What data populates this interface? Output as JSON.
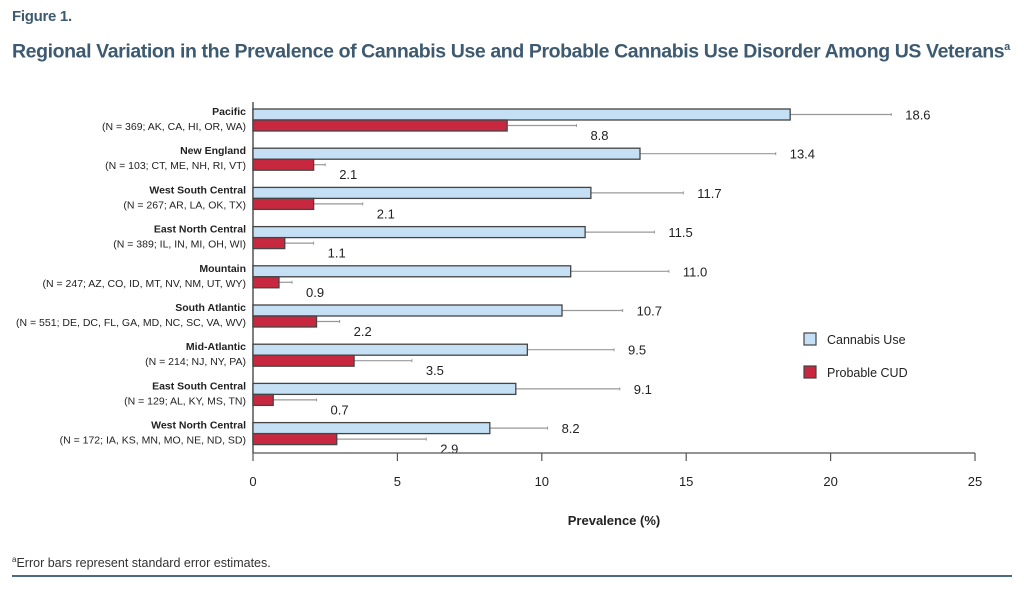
{
  "figure_label": "Figure 1.",
  "title": "Regional Variation in the Prevalence of Cannabis Use and Probable Cannabis Use Disorder Among US Veterans",
  "title_superscript": "a",
  "footnote_marker": "a",
  "footnote": "Error bars represent standard error estimates.",
  "colors": {
    "cannabis_use": "#c5e0f4",
    "probable_cud": "#c8283f",
    "bar_stroke": "#444444",
    "error_bar": "#999999",
    "title": "#3d5a70",
    "rule": "#4c6b80"
  },
  "chart_data": {
    "type": "bar",
    "orientation": "horizontal",
    "title": "Regional Variation in the Prevalence of Cannabis Use and Probable Cannabis Use Disorder Among US Veterans",
    "xlabel": "Prevalence (%)",
    "ylabel": "",
    "xlim": [
      0,
      25
    ],
    "xticks": [
      0,
      5,
      10,
      15,
      20,
      25
    ],
    "grid": false,
    "legend_position": "right",
    "categories": [
      {
        "name": "Pacific",
        "sub": "(N = 369; AK, CA, HI, OR, WA)"
      },
      {
        "name": "New England",
        "sub": "(N = 103; CT, ME, NH, RI, VT)"
      },
      {
        "name": "West South Central",
        "sub": "(N = 267; AR, LA, OK, TX)"
      },
      {
        "name": "East North Central",
        "sub": "(N = 389; IL, IN, MI, OH, WI)"
      },
      {
        "name": "Mountain",
        "sub": "(N = 247; AZ, CO, ID, MT, NV, NM, UT, WY)"
      },
      {
        "name": "South Atlantic",
        "sub": "(N = 551; DE, DC, FL, GA, MD, NC, SC, VA, WV)"
      },
      {
        "name": "Mid-Atlantic",
        "sub": "(N = 214; NJ, NY, PA)"
      },
      {
        "name": "East South Central",
        "sub": "(N = 129; AL, KY, MS, TN)"
      },
      {
        "name": "West North Central",
        "sub": "(N = 172; IA, KS, MN, MO, NE, ND, SD)"
      }
    ],
    "series": [
      {
        "name": "Cannabis Use",
        "values": [
          18.6,
          13.4,
          11.7,
          11.5,
          11.0,
          10.7,
          9.5,
          9.1,
          8.2
        ],
        "labels": [
          "18.6",
          "13.4",
          "11.7",
          "11.5",
          "11.0",
          "10.7",
          "9.5",
          "9.1",
          "8.2"
        ],
        "se": [
          3.5,
          4.7,
          3.2,
          2.4,
          3.4,
          2.1,
          3.0,
          3.6,
          2.0
        ]
      },
      {
        "name": "Probable CUD",
        "values": [
          8.8,
          2.1,
          2.1,
          1.1,
          0.9,
          2.2,
          3.5,
          0.7,
          2.9
        ],
        "labels": [
          "8.8",
          "2.1",
          "2.1",
          "1.1",
          "0.9",
          "2.2",
          "3.5",
          "0.7",
          "2.9"
        ],
        "se": [
          2.4,
          0.4,
          1.7,
          1.0,
          0.45,
          0.8,
          2.0,
          1.5,
          3.1
        ]
      }
    ]
  }
}
